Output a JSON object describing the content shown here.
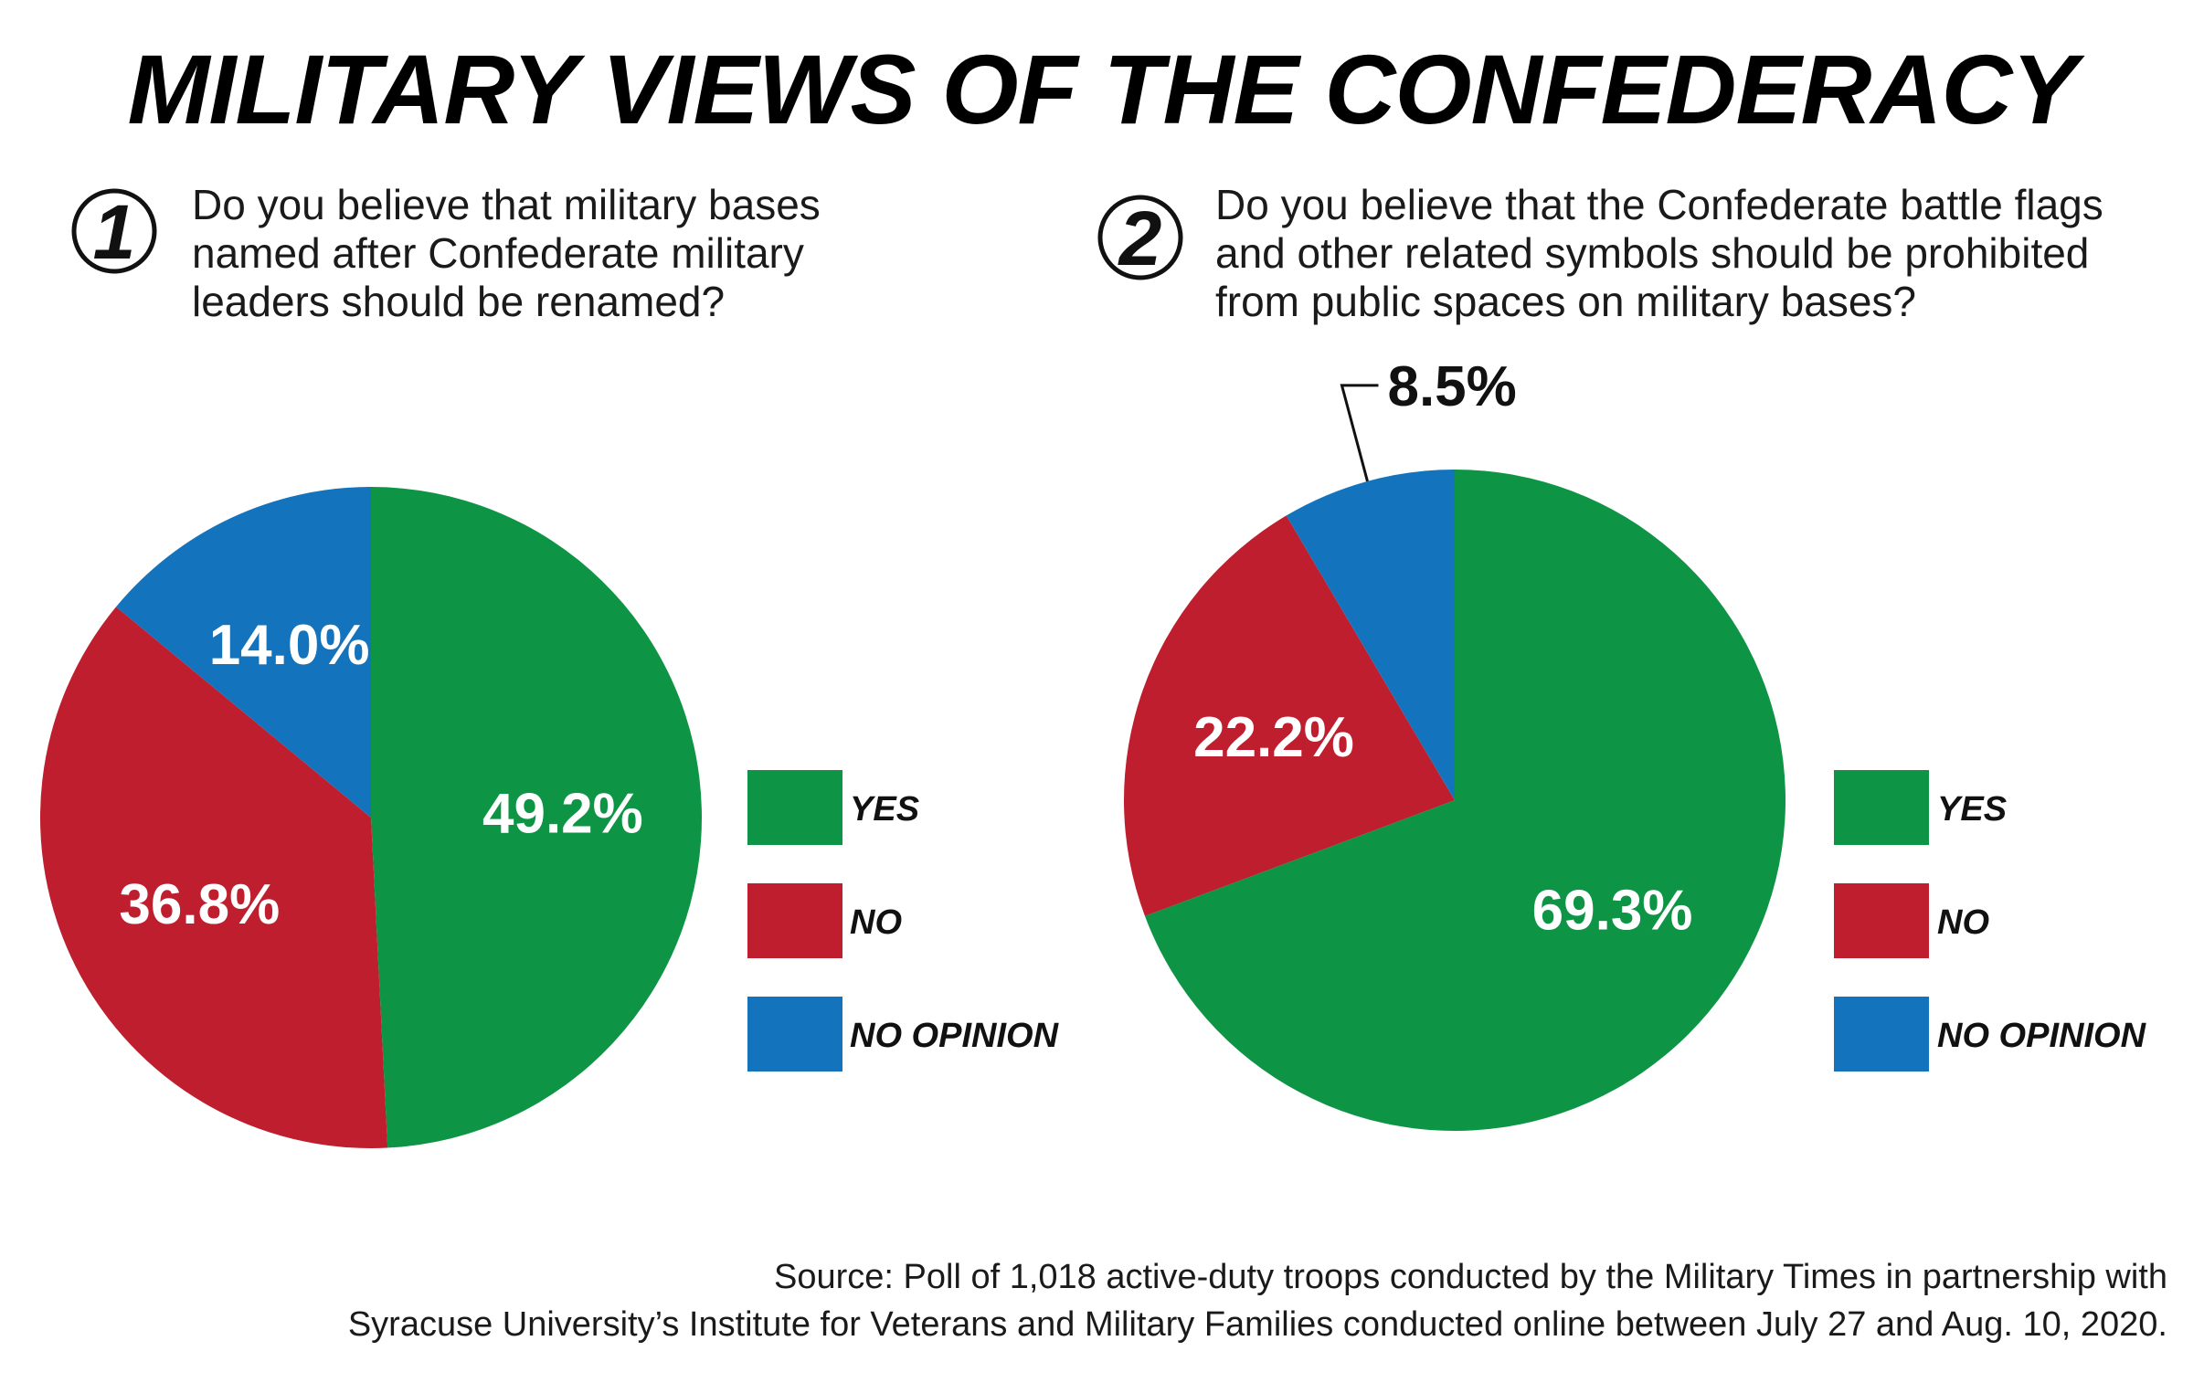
{
  "title": "MILITARY VIEWS OF THE CONFEDERACY",
  "colors": {
    "yes": "#0e9445",
    "no": "#be1e2d",
    "no_opinion": "#1373bc"
  },
  "legend": [
    {
      "key": "yes",
      "label": "YES"
    },
    {
      "key": "no",
      "label": "NO"
    },
    {
      "key": "no_opinion",
      "label": "NO OPINION"
    }
  ],
  "chart_data": [
    {
      "type": "pie",
      "number": "1",
      "question_lines": [
        "Do you believe that military bases",
        "named after Confederate military",
        "leaders should be renamed?"
      ],
      "slices": [
        {
          "key": "yes",
          "label": "YES",
          "value": 49.2,
          "display": "49.2%"
        },
        {
          "key": "no",
          "label": "NO",
          "value": 36.8,
          "display": "36.8%"
        },
        {
          "key": "no_opinion",
          "label": "NO OPINION",
          "value": 14.0,
          "display": "14.0%"
        }
      ]
    },
    {
      "type": "pie",
      "number": "2",
      "question_lines": [
        "Do you believe that the Confederate battle flags",
        "and other related symbols should be prohibited",
        "from public spaces on military bases?"
      ],
      "slices": [
        {
          "key": "yes",
          "label": "YES",
          "value": 69.3,
          "display": "69.3%"
        },
        {
          "key": "no",
          "label": "NO",
          "value": 22.2,
          "display": "22.2%"
        },
        {
          "key": "no_opinion",
          "label": "NO OPINION",
          "value": 8.5,
          "display": "8.5%"
        }
      ]
    }
  ],
  "source_lines": [
    "Source: Poll of 1,018 active-duty troops conducted by the Military Times in partnership with",
    "Syracuse University’s Institute for Veterans and Military Families conducted online between July 27 and Aug. 10, 2020."
  ]
}
